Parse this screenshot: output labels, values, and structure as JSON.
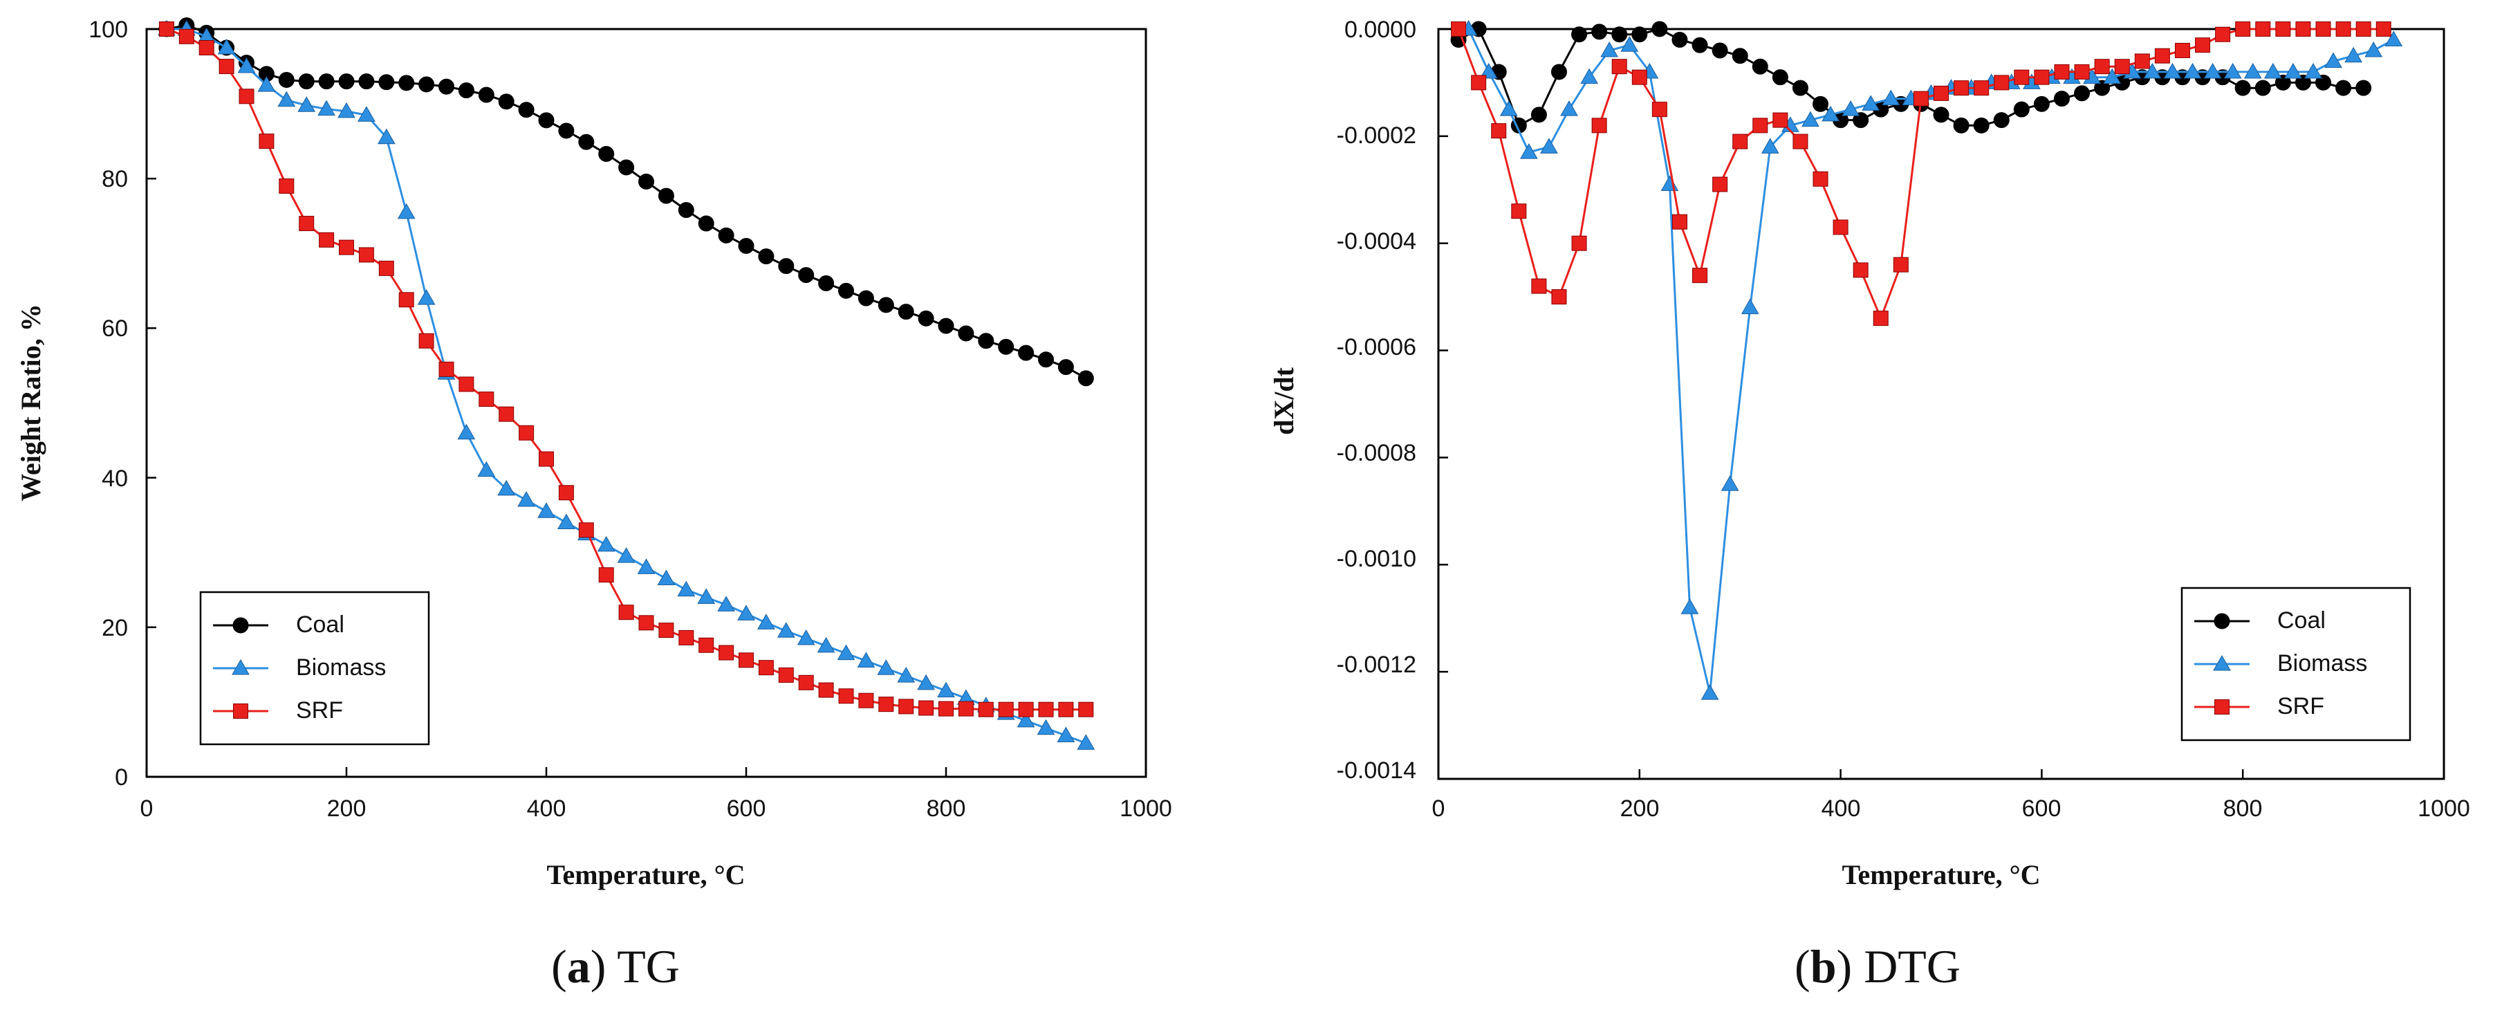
{
  "chart_data": [
    {
      "type": "line",
      "title": "",
      "xlabel": "Temperature, °C",
      "ylabel": "Weight Ratio, %",
      "xlim": [
        0,
        1000
      ],
      "ylim": [
        0,
        100
      ],
      "xticks": [
        "0",
        "200",
        "400",
        "600",
        "800",
        "1000"
      ],
      "yticks": [
        "0",
        "20",
        "40",
        "60",
        "80",
        "100"
      ],
      "legend_position": "bottom-left",
      "caption_letter": "a",
      "caption_text": "TG",
      "series": [
        {
          "name": "Coal",
          "color": "#000000",
          "marker": "circle",
          "x": [
            20,
            40,
            60,
            80,
            100,
            120,
            140,
            160,
            180,
            200,
            220,
            240,
            260,
            280,
            300,
            320,
            340,
            360,
            380,
            400,
            420,
            440,
            460,
            480,
            500,
            520,
            540,
            560,
            580,
            600,
            620,
            640,
            660,
            680,
            700,
            720,
            740,
            760,
            780,
            800,
            820,
            840,
            860,
            880,
            900,
            920,
            940
          ],
          "y": [
            100,
            100.5,
            99.5,
            97.5,
            95.5,
            94,
            93.2,
            93,
            93,
            93,
            93,
            92.9,
            92.8,
            92.6,
            92.3,
            91.8,
            91.2,
            90.3,
            89.2,
            87.8,
            86.4,
            84.9,
            83.3,
            81.5,
            79.6,
            77.7,
            75.8,
            74,
            72.4,
            71,
            69.6,
            68.3,
            67.1,
            66,
            65,
            64,
            63.1,
            62.2,
            61.3,
            60.3,
            59.3,
            58.3,
            57.5,
            56.7,
            55.8,
            54.8,
            53.3
          ]
        },
        {
          "name": "Biomass",
          "color": "#2e8fe0",
          "marker": "triangle",
          "x": [
            20,
            40,
            60,
            80,
            100,
            120,
            140,
            160,
            180,
            200,
            220,
            240,
            260,
            280,
            300,
            320,
            340,
            360,
            380,
            400,
            420,
            440,
            460,
            480,
            500,
            520,
            540,
            560,
            580,
            600,
            620,
            640,
            660,
            680,
            700,
            720,
            740,
            760,
            780,
            800,
            820,
            840,
            860,
            880,
            900,
            920,
            940
          ],
          "y": [
            100,
            100,
            99,
            97.5,
            95,
            92.5,
            90.5,
            89.8,
            89.3,
            89,
            88.5,
            85.5,
            75.5,
            64,
            54,
            46,
            41,
            38.5,
            37,
            35.5,
            34,
            32.5,
            31,
            29.5,
            28,
            26.5,
            25,
            24,
            23,
            21.8,
            20.6,
            19.5,
            18.5,
            17.5,
            16.5,
            15.5,
            14.5,
            13.5,
            12.5,
            11.5,
            10.5,
            9.5,
            8.5,
            7.5,
            6.5,
            5.5,
            4.5
          ]
        },
        {
          "name": "SRF",
          "color": "#e8201c",
          "marker": "square",
          "x": [
            20,
            40,
            60,
            80,
            100,
            120,
            140,
            160,
            180,
            200,
            220,
            240,
            260,
            280,
            300,
            320,
            340,
            360,
            380,
            400,
            420,
            440,
            460,
            480,
            500,
            520,
            540,
            560,
            580,
            600,
            620,
            640,
            660,
            680,
            700,
            720,
            740,
            760,
            780,
            800,
            820,
            840,
            860,
            880,
            900,
            920,
            940
          ],
          "y": [
            100,
            99,
            97.5,
            95,
            91,
            85,
            79,
            74,
            71.8,
            70.8,
            69.8,
            68,
            63.8,
            58.3,
            54.5,
            52.5,
            50.5,
            48.5,
            46,
            42.5,
            38,
            33,
            27,
            22,
            20.6,
            19.6,
            18.6,
            17.6,
            16.6,
            15.6,
            14.6,
            13.6,
            12.6,
            11.6,
            10.8,
            10.2,
            9.7,
            9.4,
            9.2,
            9.1,
            9.1,
            9,
            9,
            9,
            9,
            9,
            9
          ]
        }
      ]
    },
    {
      "type": "line",
      "title": "",
      "xlabel": "Temperature, °C",
      "ylabel": "dX/dt",
      "xlim": [
        0,
        1000
      ],
      "ylim": [
        -0.0014,
        0
      ],
      "xticks": [
        "0",
        "200",
        "400",
        "600",
        "800",
        "1000"
      ],
      "yticks": [
        "0.0000",
        "-0.0002",
        "-0.0004",
        "-0.0006",
        "-0.0008",
        "-0.0010",
        "-0.0012",
        "-0.0014"
      ],
      "legend_position": "bottom-right",
      "caption_letter": "b",
      "caption_text": "DTG",
      "series": [
        {
          "name": "Coal",
          "color": "#000000",
          "marker": "circle",
          "x": [
            20,
            40,
            60,
            80,
            100,
            120,
            140,
            160,
            180,
            200,
            220,
            240,
            260,
            280,
            300,
            320,
            340,
            360,
            380,
            400,
            420,
            440,
            460,
            480,
            500,
            520,
            540,
            560,
            580,
            600,
            620,
            640,
            660,
            680,
            700,
            720,
            740,
            760,
            780,
            800,
            820,
            840,
            860,
            880,
            900,
            920
          ],
          "y": [
            -2e-05,
            0,
            -8e-05,
            -0.00018,
            -0.00016,
            -8e-05,
            -1e-05,
            -5e-06,
            -1e-05,
            -1e-05,
            0,
            -2e-05,
            -3e-05,
            -4e-05,
            -5e-05,
            -7e-05,
            -9e-05,
            -0.00011,
            -0.00014,
            -0.00017,
            -0.00017,
            -0.00015,
            -0.00014,
            -0.00014,
            -0.00016,
            -0.00018,
            -0.00018,
            -0.00017,
            -0.00015,
            -0.00014,
            -0.00013,
            -0.00012,
            -0.00011,
            -0.0001,
            -9e-05,
            -9e-05,
            -9e-05,
            -9e-05,
            -9e-05,
            -0.00011,
            -0.00011,
            -0.0001,
            -0.0001,
            -0.0001,
            -0.00011,
            -0.00011
          ]
        },
        {
          "name": "Biomass",
          "color": "#2e8fe0",
          "marker": "triangle",
          "x": [
            30,
            50,
            70,
            90,
            110,
            130,
            150,
            170,
            190,
            210,
            230,
            250,
            270,
            290,
            310,
            330,
            350,
            370,
            390,
            410,
            430,
            450,
            470,
            490,
            510,
            530,
            550,
            570,
            590,
            610,
            630,
            650,
            670,
            690,
            710,
            730,
            750,
            770,
            790,
            810,
            830,
            850,
            870,
            890,
            910,
            930,
            950
          ],
          "y": [
            0,
            -8e-05,
            -0.00015,
            -0.00023,
            -0.00022,
            -0.00015,
            -9e-05,
            -4e-05,
            -3e-05,
            -8e-05,
            -0.00029,
            -0.00108,
            -0.00124,
            -0.00085,
            -0.00052,
            -0.00022,
            -0.00018,
            -0.00017,
            -0.00016,
            -0.00015,
            -0.00014,
            -0.00013,
            -0.00013,
            -0.00012,
            -0.00011,
            -0.00011,
            -0.0001,
            -0.0001,
            -0.0001,
            -9e-05,
            -9e-05,
            -9e-05,
            -9e-05,
            -8e-05,
            -8e-05,
            -8e-05,
            -8e-05,
            -8e-05,
            -8e-05,
            -8e-05,
            -8e-05,
            -8e-05,
            -8e-05,
            -6e-05,
            -5e-05,
            -4e-05,
            -2e-05
          ]
        },
        {
          "name": "SRF",
          "color": "#e8201c",
          "marker": "square",
          "x": [
            20,
            40,
            60,
            80,
            100,
            120,
            140,
            160,
            180,
            200,
            220,
            240,
            260,
            280,
            300,
            320,
            340,
            360,
            380,
            400,
            420,
            440,
            460,
            480,
            500,
            520,
            540,
            560,
            580,
            600,
            620,
            640,
            660,
            680,
            700,
            720,
            740,
            760,
            780,
            800,
            820,
            840,
            860,
            880,
            900,
            920,
            940
          ],
          "y": [
            0,
            -0.0001,
            -0.00019,
            -0.00034,
            -0.00048,
            -0.0005,
            -0.0004,
            -0.00018,
            -7e-05,
            -9e-05,
            -0.00015,
            -0.00036,
            -0.00046,
            -0.00029,
            -0.00021,
            -0.00018,
            -0.00017,
            -0.00021,
            -0.00028,
            -0.00037,
            -0.00045,
            -0.00054,
            -0.00044,
            -0.00013,
            -0.00012,
            -0.00011,
            -0.00011,
            -0.0001,
            -9e-05,
            -9e-05,
            -8e-05,
            -8e-05,
            -7e-05,
            -7e-05,
            -6e-05,
            -5e-05,
            -4e-05,
            -3e-05,
            -1e-05,
            0,
            0,
            0,
            0,
            0,
            0,
            0,
            0
          ]
        }
      ]
    }
  ]
}
